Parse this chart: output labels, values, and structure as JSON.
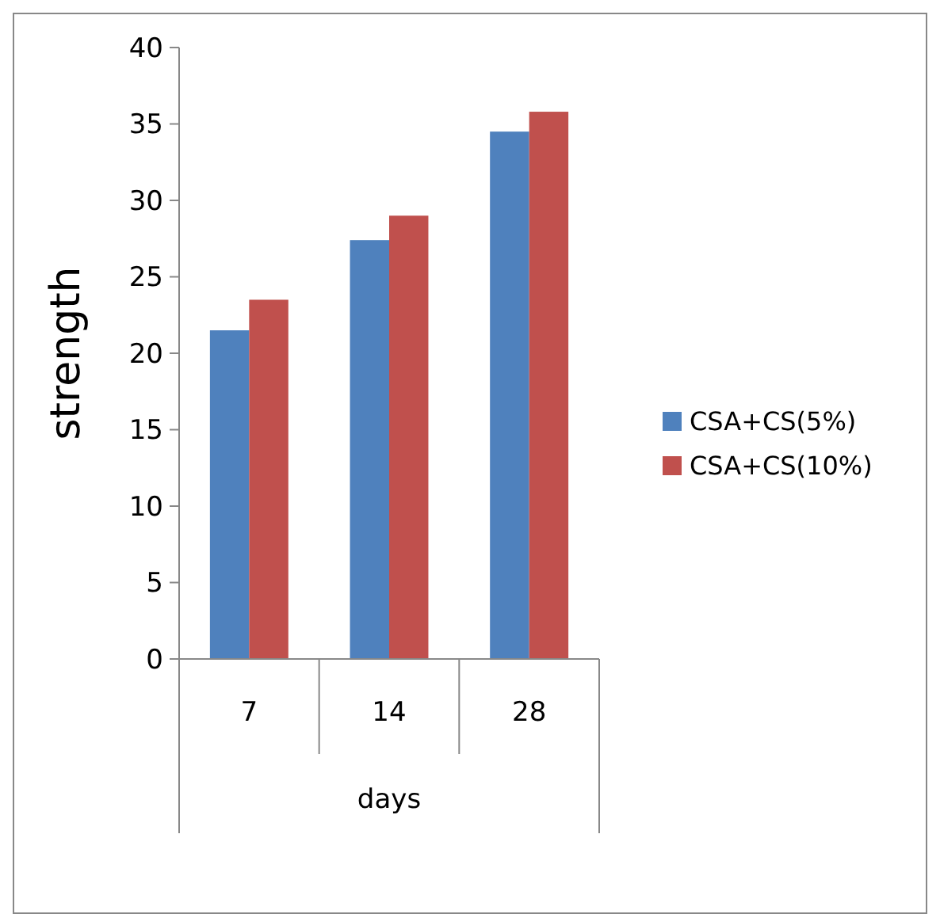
{
  "chart_data": {
    "type": "bar",
    "xlabel": "days",
    "ylabel": "strength",
    "categories": [
      "7",
      "14",
      "28"
    ],
    "series": [
      {
        "name": "CSA+CS(5%)",
        "color": "#4f81bd",
        "values": [
          21.5,
          27.4,
          34.5
        ]
      },
      {
        "name": "CSA+CS(10%)",
        "color": "#c0504d",
        "values": [
          23.5,
          29.0,
          35.8
        ]
      }
    ],
    "ylim": [
      0,
      40
    ],
    "yticks": [
      0,
      5,
      10,
      15,
      20,
      25,
      30,
      35,
      40
    ],
    "grid": false,
    "legend": "right"
  }
}
